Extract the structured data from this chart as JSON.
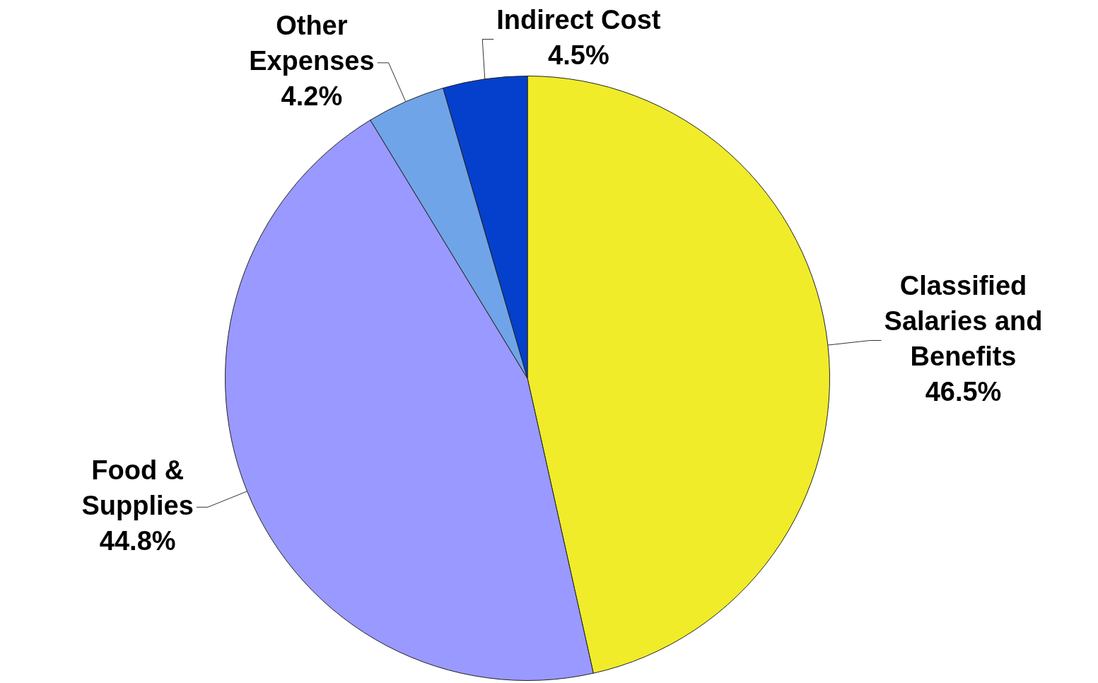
{
  "chart_data": {
    "type": "pie",
    "categories": [
      "Classified Salaries and Benefits",
      "Food & Supplies",
      "Other Expenses",
      "Indirect Cost"
    ],
    "values": [
      46.5,
      44.8,
      4.2,
      4.5
    ],
    "value_labels": [
      "46.5%",
      "44.8%",
      "4.2%",
      "4.5%"
    ],
    "colors": [
      "#f0ec2a",
      "#9999ff",
      "#70a4e8",
      "#0440cc"
    ],
    "legend": false
  }
}
